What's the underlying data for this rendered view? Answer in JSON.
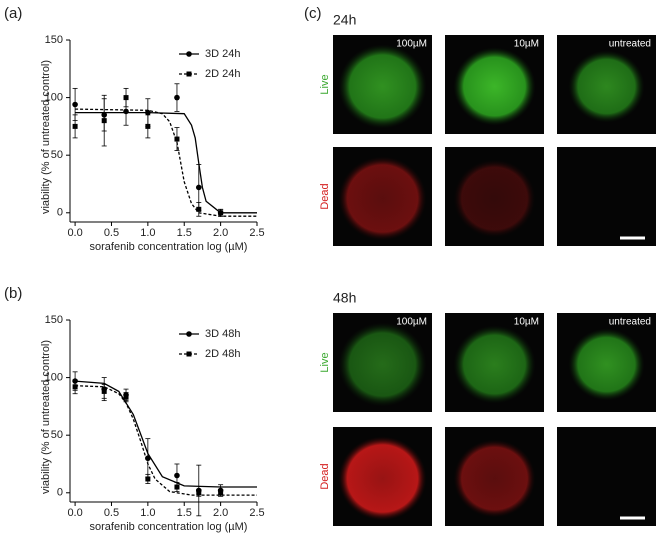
{
  "chart_data": [
    {
      "type": "line",
      "panel_label": "(a)",
      "x_label": "sorafenib concentration log (µM)",
      "y_label": "viability (% of untreated control)",
      "xlim": [
        -0.07,
        2.5
      ],
      "ylim": [
        -8,
        150
      ],
      "xticks": [
        {
          "value": 0,
          "label": "0.0"
        },
        0.5,
        {
          "value": 1,
          "label": "1.0"
        },
        1.5,
        {
          "value": 2,
          "label": "2.0"
        },
        2.5
      ],
      "yticks": [
        0,
        50,
        100,
        150
      ],
      "legend": "upper right",
      "series": [
        {
          "name": "3D 24h",
          "color": "#000000",
          "marker": "circle",
          "line_style": "solid",
          "x": [
            0,
            0.4,
            0.7,
            1.0,
            1.4,
            1.7,
            2.0
          ],
          "values": [
            94,
            85,
            88,
            87,
            100,
            22,
            0
          ],
          "errors": [
            14,
            14,
            12,
            12,
            12,
            20,
            3
          ],
          "fit": {
            "x": [
              0,
              1.0,
              1.5,
              1.6,
              1.65,
              1.7,
              1.75,
              1.8,
              2.0,
              2.5
            ],
            "values": [
              87,
              87,
              86,
              76,
              65,
              43,
              22,
              10,
              0,
              0
            ]
          }
        },
        {
          "name": "2D 24h",
          "color": "#000000",
          "marker": "square",
          "line_style": "dashed",
          "x": [
            0,
            0.4,
            0.7,
            1.0,
            1.4,
            1.7,
            2.0
          ],
          "values": [
            75,
            80,
            100,
            75,
            64,
            3,
            0
          ],
          "errors": [
            10,
            22,
            8,
            10,
            10,
            6,
            3
          ],
          "fit": {
            "x": [
              0,
              1.0,
              1.2,
              1.3,
              1.4,
              1.45,
              1.5,
              1.6,
              1.7,
              2.0,
              2.5
            ],
            "values": [
              90,
              89,
              86,
              79,
              61,
              44,
              27,
              8,
              0,
              -3,
              -3
            ]
          }
        }
      ]
    },
    {
      "type": "line",
      "panel_label": "(b)",
      "x_label": "sorafenib concentration log (µM)",
      "y_label": "viability (% of untreated control)",
      "xlim": [
        -0.07,
        2.5
      ],
      "ylim": [
        -8,
        150
      ],
      "xticks": [
        {
          "value": 0,
          "label": "0.0"
        },
        0.5,
        {
          "value": 1,
          "label": "1.0"
        },
        1.5,
        {
          "value": 2,
          "label": "2.0"
        },
        2.5
      ],
      "yticks": [
        0,
        50,
        100,
        150
      ],
      "legend": "upper right",
      "series": [
        {
          "name": "3D 48h",
          "color": "#000000",
          "marker": "circle",
          "line_style": "solid",
          "x": [
            0,
            0.4,
            0.7,
            1.0,
            1.4,
            1.7,
            2.0
          ],
          "values": [
            97,
            90,
            85,
            30,
            15,
            2,
            2
          ],
          "errors": [
            8,
            10,
            5,
            17,
            10,
            22,
            5
          ],
          "fit": {
            "x": [
              0,
              0.4,
              0.6,
              0.8,
              0.9,
              1.0,
              1.2,
              1.5,
              2.0,
              2.5
            ],
            "values": [
              97,
              95,
              88,
              68,
              51,
              34,
              14,
              6,
              5,
              5
            ]
          }
        },
        {
          "name": "2D 48h",
          "color": "#000000",
          "marker": "square",
          "line_style": "dashed",
          "x": [
            0,
            0.4,
            0.7,
            1.0,
            1.4,
            1.7,
            2.0
          ],
          "values": [
            92,
            88,
            83,
            12,
            5,
            0,
            0
          ],
          "errors": [
            6,
            6,
            4,
            4,
            4,
            3,
            3
          ],
          "fit": {
            "x": [
              0,
              0.4,
              0.6,
              0.7,
              0.8,
              0.9,
              1.0,
              1.1,
              1.3,
              1.6,
              2.5
            ],
            "values": [
              93,
              92,
              86,
              78,
              64,
              45,
              25,
              12,
              1,
              -2,
              -2
            ]
          }
        }
      ]
    }
  ],
  "panel_c": {
    "label": "(c)",
    "groups": [
      {
        "title": "24h",
        "rows": [
          {
            "label": "Live",
            "images": [
              "100µM",
              "10µM",
              "untreated"
            ]
          },
          {
            "label": "Dead"
          }
        ]
      },
      {
        "title": "48h",
        "rows": [
          {
            "label": "Live",
            "images": [
              "100µM",
              "10µM",
              "untreated"
            ]
          },
          {
            "label": "Dead"
          }
        ]
      }
    ]
  }
}
